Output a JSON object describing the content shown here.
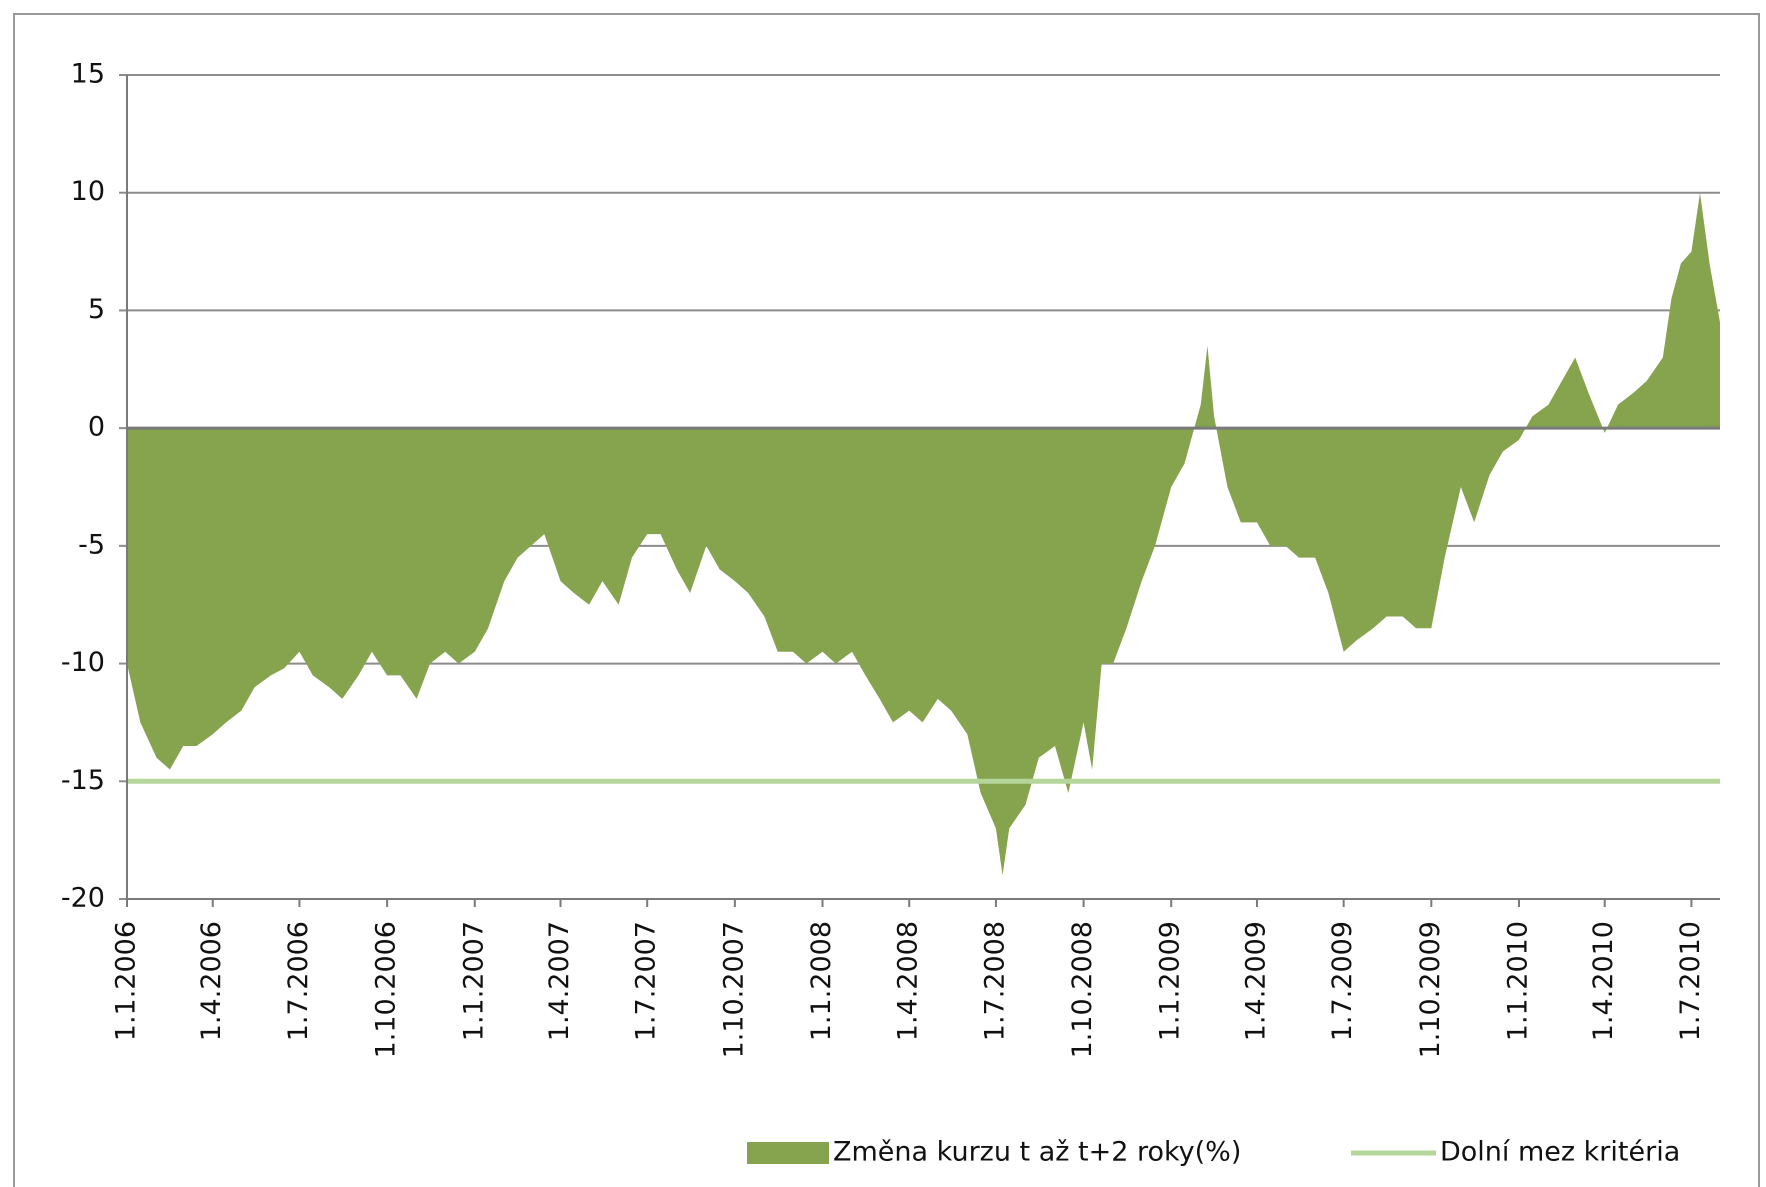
{
  "chart_data": {
    "type": "area",
    "x": [
      "2006-01-01",
      "2006-01-15",
      "2006-02-01",
      "2006-02-15",
      "2006-03-01",
      "2006-03-15",
      "2006-04-01",
      "2006-04-15",
      "2006-05-01",
      "2006-05-15",
      "2006-06-01",
      "2006-06-15",
      "2006-07-01",
      "2006-07-15",
      "2006-08-01",
      "2006-08-15",
      "2006-09-01",
      "2006-09-15",
      "2006-10-01",
      "2006-10-15",
      "2006-11-01",
      "2006-11-15",
      "2006-12-01",
      "2006-12-15",
      "2007-01-01",
      "2007-01-15",
      "2007-02-01",
      "2007-02-15",
      "2007-03-01",
      "2007-03-15",
      "2007-04-01",
      "2007-04-15",
      "2007-05-01",
      "2007-05-15",
      "2007-06-01",
      "2007-06-15",
      "2007-07-01",
      "2007-07-15",
      "2007-08-01",
      "2007-08-15",
      "2007-09-01",
      "2007-09-15",
      "2007-10-01",
      "2007-10-15",
      "2007-11-01",
      "2007-11-15",
      "2007-12-01",
      "2007-12-15",
      "2008-01-01",
      "2008-01-15",
      "2008-02-01",
      "2008-02-15",
      "2008-03-01",
      "2008-03-15",
      "2008-04-01",
      "2008-04-15",
      "2008-05-01",
      "2008-05-15",
      "2008-06-01",
      "2008-06-15",
      "2008-07-01",
      "2008-07-08",
      "2008-07-15",
      "2008-08-01",
      "2008-08-15",
      "2008-09-01",
      "2008-09-15",
      "2008-10-01",
      "2008-10-10",
      "2008-10-20",
      "2008-11-01",
      "2008-11-15",
      "2008-12-01",
      "2008-12-15",
      "2009-01-01",
      "2009-01-15",
      "2009-02-01",
      "2009-02-08",
      "2009-02-15",
      "2009-03-01",
      "2009-03-15",
      "2009-04-01",
      "2009-04-15",
      "2009-05-01",
      "2009-05-15",
      "2009-06-01",
      "2009-06-15",
      "2009-07-01",
      "2009-07-15",
      "2009-08-01",
      "2009-08-15",
      "2009-09-01",
      "2009-09-15",
      "2009-10-01",
      "2009-10-15",
      "2009-11-01",
      "2009-11-15",
      "2009-12-01",
      "2009-12-15",
      "2010-01-01",
      "2010-01-15",
      "2010-02-01",
      "2010-02-15",
      "2010-03-01",
      "2010-03-15",
      "2010-04-01",
      "2010-04-15",
      "2010-05-01",
      "2010-05-15",
      "2010-06-01",
      "2010-06-10",
      "2010-06-20",
      "2010-07-01",
      "2010-07-10",
      "2010-07-20",
      "2010-07-31"
    ],
    "series": [
      {
        "name": "Změna kurzu t až t+2 roky(%)",
        "color": "#86a34e",
        "values": [
          -10,
          -12.5,
          -14,
          -14.5,
          -13.5,
          -13.5,
          -13,
          -12.5,
          -12,
          -11,
          -10.5,
          -10.2,
          -9.5,
          -10.5,
          -11,
          -11.5,
          -10.5,
          -9.5,
          -10.5,
          -10.5,
          -11.5,
          -10,
          -9.5,
          -10,
          -9.5,
          -8.5,
          -6.5,
          -5.5,
          -5,
          -4.5,
          -6.5,
          -7,
          -7.5,
          -6.5,
          -7.5,
          -5.5,
          -4.5,
          -4.5,
          -6,
          -7,
          -5,
          -6,
          -6.5,
          -7,
          -8,
          -9.5,
          -9.5,
          -10,
          -9.5,
          -10,
          -9.5,
          -10.5,
          -11.5,
          -12.5,
          -12,
          -12.5,
          -11.5,
          -12,
          -13,
          -15.5,
          -17,
          -19,
          -17,
          -16,
          -14,
          -13.5,
          -15.5,
          -12.5,
          -14.5,
          -10,
          -10,
          -8.5,
          -6.5,
          -5,
          -2.5,
          -1.5,
          1,
          3.5,
          0.5,
          -2.5,
          -4,
          -4,
          -5,
          -5,
          -5.5,
          -5.5,
          -7,
          -9.5,
          -9,
          -8.5,
          -8,
          -8,
          -8.5,
          -8.5,
          -5.5,
          -2.5,
          -4,
          -2,
          -1,
          -0.5,
          0.5,
          1,
          2,
          3,
          1.5,
          -0.2,
          1,
          1.5,
          2,
          3,
          5.5,
          7,
          7.5,
          10,
          7,
          4.5
        ]
      },
      {
        "name": "Dolní mez kritéria",
        "color": "#b5d69b",
        "x": [
          "2006-01-01",
          "2010-07-31"
        ],
        "values": [
          -15,
          -15
        ]
      }
    ],
    "xlim": [
      "2006-01-01",
      "2010-07-31"
    ],
    "xticks": [
      {
        "value": "2006-01-01",
        "label": "1.1.2006"
      },
      {
        "value": "2006-04-01",
        "label": "1.4.2006"
      },
      {
        "value": "2006-07-01",
        "label": "1.7.2006"
      },
      {
        "value": "2006-10-01",
        "label": "1.10.2006"
      },
      {
        "value": "2007-01-01",
        "label": "1.1.2007"
      },
      {
        "value": "2007-04-01",
        "label": "1.4.2007"
      },
      {
        "value": "2007-07-01",
        "label": "1.7.2007"
      },
      {
        "value": "2007-10-01",
        "label": "1.10.2007"
      },
      {
        "value": "2008-01-01",
        "label": "1.1.2008"
      },
      {
        "value": "2008-04-01",
        "label": "1.4.2008"
      },
      {
        "value": "2008-07-01",
        "label": "1.7.2008"
      },
      {
        "value": "2008-10-01",
        "label": "1.10.2008"
      },
      {
        "value": "2009-01-01",
        "label": "1.1.2009"
      },
      {
        "value": "2009-04-01",
        "label": "1.4.2009"
      },
      {
        "value": "2009-07-01",
        "label": "1.7.2009"
      },
      {
        "value": "2009-10-01",
        "label": "1.10.2009"
      },
      {
        "value": "2010-01-01",
        "label": "1.1.2010"
      },
      {
        "value": "2010-04-01",
        "label": "1.4.2010"
      },
      {
        "value": "2010-07-01",
        "label": "1.7.2010"
      }
    ],
    "ylim": [
      -20,
      15
    ],
    "yticks": [
      -20,
      -15,
      -10,
      -5,
      0,
      5,
      10,
      15
    ],
    "grid": true,
    "legend": "bottom-right"
  }
}
